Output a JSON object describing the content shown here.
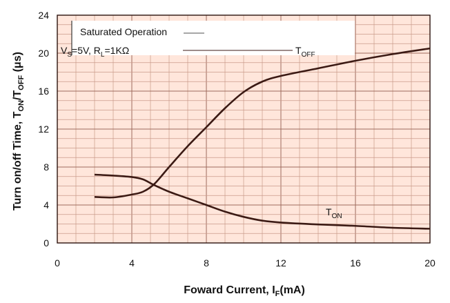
{
  "chart_data": {
    "type": "line",
    "xlabel": "Foward Current, I",
    "xlabel_sub": "F",
    "xlabel_suffix": "(mA)",
    "ylabel": "Turn on/off Time, T",
    "ylabel_sub1": "ON",
    "ylabel_mid": "/T",
    "ylabel_sub2": "OFF",
    "ylabel_suffix": " (μs)",
    "xlim": [
      0,
      20
    ],
    "ylim": [
      0,
      24
    ],
    "xticks": [
      0,
      4,
      8,
      12,
      16,
      20
    ],
    "yticks": [
      0,
      4,
      8,
      12,
      16,
      20,
      24
    ],
    "grid": true,
    "annotation_line1": "Saturated Operation",
    "annotation_line2": "V",
    "annotation_line2_sub": "S",
    "annotation_line2_rest": "=5V, R",
    "annotation_line2_sub2": "L",
    "annotation_line2_end": "=1KΩ",
    "series": [
      {
        "name": "T",
        "name_sub": "OFF",
        "x": [
          2,
          3,
          4,
          4.6,
          5.2,
          6,
          7,
          8,
          9,
          10,
          11,
          12,
          14,
          16,
          18,
          20
        ],
        "y": [
          4.85,
          4.8,
          5.1,
          5.4,
          6.2,
          8.0,
          10.2,
          12.2,
          14.2,
          15.9,
          17.0,
          17.6,
          18.4,
          19.2,
          19.9,
          20.5
        ]
      },
      {
        "name": "T",
        "name_sub": "ON",
        "x": [
          2,
          3,
          4,
          4.6,
          5.2,
          6,
          7,
          8,
          9,
          10,
          11,
          12,
          14,
          16,
          18,
          20
        ],
        "y": [
          7.2,
          7.1,
          6.95,
          6.7,
          6.1,
          5.4,
          4.7,
          4.0,
          3.3,
          2.75,
          2.35,
          2.15,
          1.95,
          1.8,
          1.6,
          1.5
        ]
      }
    ],
    "colors": {
      "background": "#ffe6db",
      "curve": "#3b1a14"
    }
  }
}
